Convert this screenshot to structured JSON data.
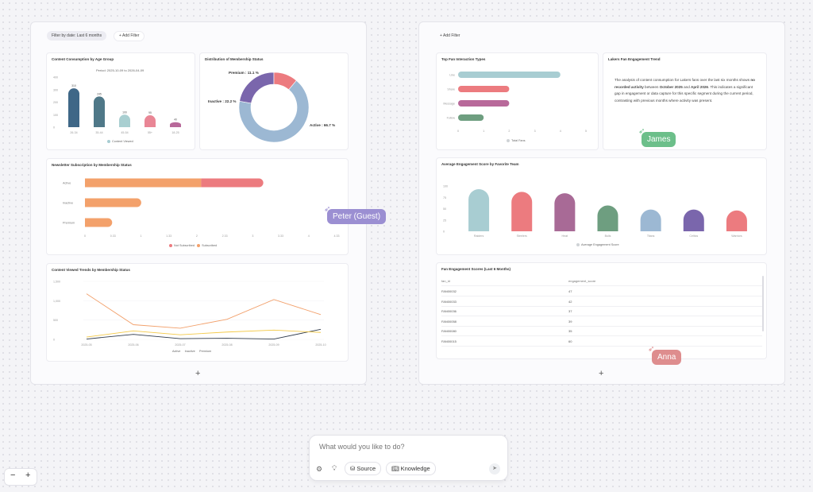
{
  "left_board": {
    "filter_chip": "Filter by date: Last 6 months",
    "add_filter": "Add Filter",
    "add_widget": "+"
  },
  "right_board": {
    "add_filter": "Add Filter",
    "add_widget": "+"
  },
  "age_chart": {
    "title": "Content Consumption by Age Group",
    "period": "Period: 2025-10-09 to 2026-04-09",
    "y_ticks": [
      "400",
      "300",
      "200",
      "100",
      "0"
    ],
    "legend": "Content Viewed",
    "legend_color": "#a8cdd2"
  },
  "membership_chart": {
    "title": "Distribution of Membership Status",
    "premium_label": "Premium : 11.1 %",
    "inactive_label": "Inactive : 22.2 %",
    "active_label": "Active : 66.7 %"
  },
  "newsletter_chart": {
    "title": "Newsletter Subscription by Membership Status",
    "categories": [
      "Active",
      "Inactive",
      "Premium"
    ],
    "x_ticks": [
      "0",
      "0.33",
      "1",
      "1.33",
      "2",
      "2.33",
      "3",
      "3.33",
      "4",
      "4.33"
    ],
    "legend_a": "Not Subscribed",
    "legend_b": "Subscribed",
    "color_a": "#ec7b7f",
    "color_b": "#f3a16b"
  },
  "trend_chart": {
    "title": "Content Viewed Trends by Membership Status",
    "y_ticks": [
      "1,500",
      "1,000",
      "500",
      "0"
    ],
    "x_ticks": [
      "2025-05",
      "2025-06",
      "2025-07",
      "2025-08",
      "2025-09",
      "2025-10"
    ],
    "legend": [
      "Active",
      "Inactive",
      "Premium"
    ]
  },
  "interaction_chart": {
    "title": "Top Fan Interaction Types",
    "x_ticks": [
      "0",
      "1",
      "2",
      "3",
      "4",
      "5"
    ],
    "legend": "Total Fans",
    "legend_color": "#cfd3d6"
  },
  "lakers_text": {
    "title": "Lakers Fan Engagement Trend",
    "p1": "The analysis of content consumption for Lakers fans over the last six months shows ",
    "b1": "no recorded activity",
    "p2": " between ",
    "b2": "October 2025",
    "p3": " and ",
    "b3": "April 2026",
    "p4": ". This indicates a significant gap in engagement or data capture for this specific segment during the current period, contrasting with previous months where activity was present."
  },
  "team_chart": {
    "title": "Average Engagement Score by Favorite Team",
    "y_ticks": [
      "100",
      "75",
      "50",
      "25",
      "0"
    ],
    "legend": "Average Engagement Score",
    "legend_color": "#cfd3d6"
  },
  "scores_table": {
    "title": "Fan Engagement Scores (Last 6 Months)",
    "col1": "fan_id",
    "col2": "engagement_score",
    "rows": [
      {
        "id": "FAN00032",
        "score": "47"
      },
      {
        "id": "FAN00033",
        "score": "42"
      },
      {
        "id": "FAN00036",
        "score": "37"
      },
      {
        "id": "FAN00058",
        "score": "39"
      },
      {
        "id": "FAN00080",
        "score": "35"
      },
      {
        "id": "FAN00015",
        "score": "60"
      }
    ]
  },
  "collaborators": [
    {
      "name": "James",
      "color": "#6cbf8a"
    },
    {
      "name": "Peter (Guest)",
      "color": "#9b8fd2"
    },
    {
      "name": "Anna",
      "color": "#de8d8e"
    }
  ],
  "prompt": {
    "placeholder": "What would you like to do?",
    "source": "Source",
    "knowledge": "Knowledge"
  },
  "zoom": {
    "minus": "−",
    "plus": "+"
  },
  "chart_data": [
    {
      "type": "bar",
      "title": "Content Consumption by Age Group",
      "categories": [
        "26-34",
        "35-44",
        "45-54",
        "55+",
        "18-25"
      ],
      "series": [
        {
          "name": "Content Viewed",
          "values": [
            310,
            245,
            100,
            95,
            40
          ]
        }
      ],
      "ylim": [
        0,
        400
      ],
      "colors": [
        "#3f6787",
        "#4f7888",
        "#a9cfd1",
        "#e98695",
        "#b8699a"
      ]
    },
    {
      "type": "pie",
      "title": "Distribution of Membership Status",
      "categories": [
        "Active",
        "Inactive",
        "Premium"
      ],
      "values": [
        66.7,
        22.2,
        11.1
      ],
      "colors": [
        "#9cb8d3",
        "#7a66ac",
        "#ec7b7f"
      ]
    },
    {
      "type": "bar",
      "title": "Newsletter Subscription by Membership Status",
      "categories": [
        "Active",
        "Inactive",
        "Premium"
      ],
      "series": [
        {
          "name": "Subscribed",
          "values": [
            2.0,
            0.9,
            0.4
          ]
        },
        {
          "name": "Not Subscribed",
          "values": [
            1.0,
            0,
            0
          ]
        }
      ],
      "xlim": [
        0,
        4.33
      ]
    },
    {
      "type": "line",
      "title": "Content Viewed Trends by Membership Status",
      "x": [
        "2025-05",
        "2025-06",
        "2025-07",
        "2025-08",
        "2025-09",
        "2025-10"
      ],
      "series": [
        {
          "name": "Active",
          "values": [
            10,
            130,
            20,
            30,
            10,
            260
          ],
          "color": "#2f3a4a"
        },
        {
          "name": "Inactive",
          "values": [
            1180,
            380,
            290,
            520,
            1030,
            640
          ],
          "color": "#f2a06b"
        },
        {
          "name": "Premium",
          "values": [
            60,
            220,
            120,
            190,
            240,
            180
          ],
          "color": "#f3c948"
        }
      ],
      "ylim": [
        0,
        1500
      ]
    },
    {
      "type": "bar",
      "title": "Top Fan Interaction Types",
      "categories": [
        "Like",
        "Share",
        "Message",
        "Follow"
      ],
      "series": [
        {
          "name": "Total Fans",
          "values": [
            4,
            2,
            2,
            1
          ]
        }
      ],
      "xlim": [
        0,
        5
      ],
      "colors": [
        "#a8cdd2",
        "#ec7b7f",
        "#b8699a",
        "#6e9e80"
      ]
    },
    {
      "type": "bar",
      "title": "Average Engagement Score by Favorite Team",
      "categories": [
        "Raiders",
        "Steelers",
        "Heat",
        "Bulls",
        "Titans",
        "Celtics",
        "Warriors"
      ],
      "series": [
        {
          "name": "Average Engagement Score",
          "values": [
            93,
            87,
            84,
            57,
            48,
            48,
            46
          ]
        }
      ],
      "ylim": [
        0,
        100
      ],
      "colors": [
        "#a8cdd2",
        "#ec7b7f",
        "#a86a96",
        "#6e9e80",
        "#9cb8d3",
        "#7a66ac",
        "#ec7b7f"
      ]
    }
  ]
}
